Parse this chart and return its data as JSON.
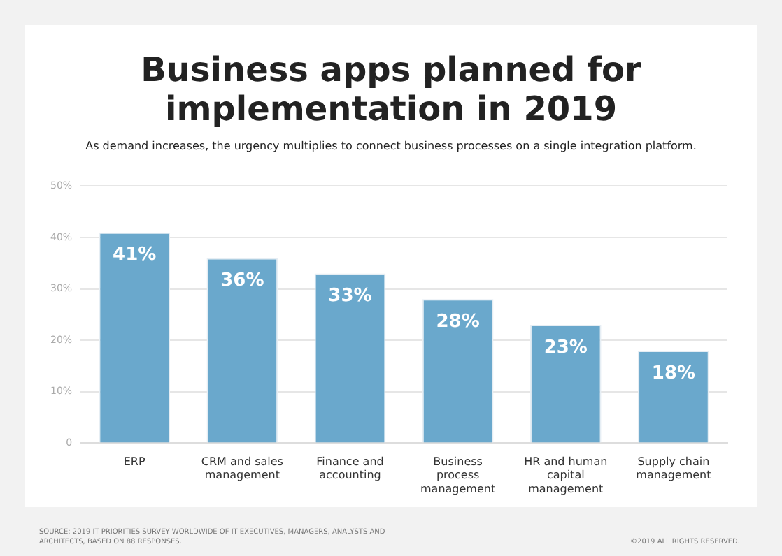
{
  "chart_data": {
    "type": "bar",
    "title": "Business apps planned for implementation in 2019",
    "subtitle": "As demand increases, the urgency multiplies to connect business processes on a single integration platform.",
    "categories": [
      "ERP",
      "CRM and sales management",
      "Finance and accounting",
      "Business process management",
      "HR and human capital management",
      "Supply chain management"
    ],
    "values": [
      41,
      36,
      33,
      28,
      23,
      18
    ],
    "color": "#6aa8cc",
    "value_labels": [
      "41%",
      "36%",
      "33%",
      "28%",
      "23%",
      "18%"
    ],
    "ylim": [
      0,
      50
    ],
    "yticks": [
      0,
      {
        "value": 10,
        "label": "10%"
      },
      {
        "value": 20,
        "label": "20%"
      },
      {
        "value": 30,
        "label": "30%"
      },
      {
        "value": 40,
        "label": "40%"
      },
      {
        "value": 50,
        "label": "50%"
      }
    ],
    "grid": "y",
    "annotations": [
      "SOURCE: 2019 IT PRIORITIES SURVEY WORLDWIDE OF IT EXECUTIVES, MANAGERS, ANALYSTS AND ARCHITECTS, BASED ON 88 RESPONSES.",
      "©2019 ALL RIGHTS RESERVED."
    ]
  }
}
